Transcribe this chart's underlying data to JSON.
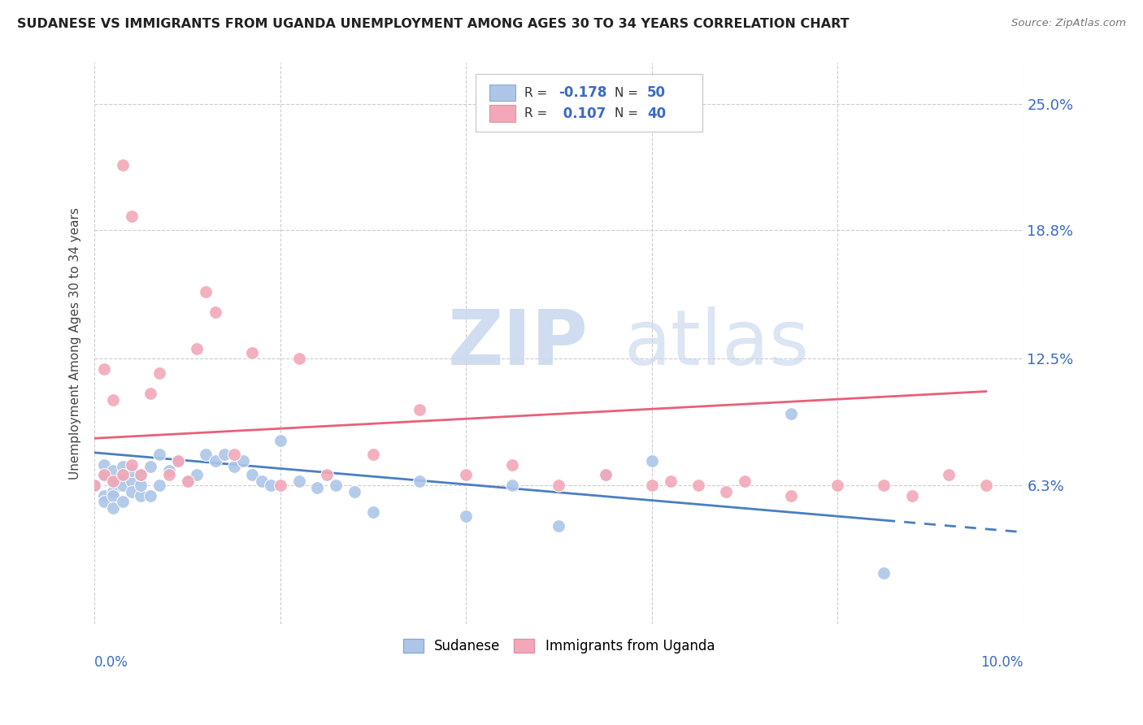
{
  "title": "SUDANESE VS IMMIGRANTS FROM UGANDA UNEMPLOYMENT AMONG AGES 30 TO 34 YEARS CORRELATION CHART",
  "source": "Source: ZipAtlas.com",
  "ylabel": "Unemployment Among Ages 30 to 34 years",
  "ytick_labels": [
    "6.3%",
    "12.5%",
    "18.8%",
    "25.0%"
  ],
  "ytick_values": [
    0.063,
    0.125,
    0.188,
    0.25
  ],
  "xlim": [
    0.0,
    0.1
  ],
  "ylim": [
    -0.005,
    0.27
  ],
  "watermark_zip": "ZIP",
  "watermark_atlas": "atlas",
  "color_blue": "#adc6e8",
  "color_pink": "#f2a8b8",
  "trend_blue": "#4a7fc1",
  "trend_pink": "#e8607a",
  "sudanese_x": [
    0.0,
    0.001,
    0.001,
    0.001,
    0.001,
    0.002,
    0.002,
    0.002,
    0.002,
    0.002,
    0.003,
    0.003,
    0.003,
    0.003,
    0.004,
    0.004,
    0.004,
    0.005,
    0.005,
    0.005,
    0.006,
    0.006,
    0.007,
    0.007,
    0.008,
    0.009,
    0.01,
    0.011,
    0.012,
    0.013,
    0.014,
    0.015,
    0.016,
    0.017,
    0.018,
    0.019,
    0.02,
    0.022,
    0.024,
    0.026,
    0.028,
    0.03,
    0.035,
    0.04,
    0.045,
    0.05,
    0.055,
    0.06,
    0.075,
    0.085
  ],
  "sudanese_y": [
    0.063,
    0.058,
    0.068,
    0.055,
    0.073,
    0.06,
    0.065,
    0.07,
    0.058,
    0.052,
    0.063,
    0.068,
    0.072,
    0.055,
    0.065,
    0.06,
    0.07,
    0.058,
    0.063,
    0.068,
    0.072,
    0.058,
    0.078,
    0.063,
    0.07,
    0.075,
    0.065,
    0.068,
    0.078,
    0.075,
    0.078,
    0.072,
    0.075,
    0.068,
    0.065,
    0.063,
    0.085,
    0.065,
    0.062,
    0.063,
    0.06,
    0.05,
    0.065,
    0.048,
    0.063,
    0.043,
    0.068,
    0.075,
    0.098,
    0.02
  ],
  "uganda_x": [
    0.0,
    0.001,
    0.001,
    0.002,
    0.002,
    0.003,
    0.003,
    0.004,
    0.004,
    0.005,
    0.006,
    0.007,
    0.008,
    0.009,
    0.01,
    0.011,
    0.012,
    0.013,
    0.015,
    0.017,
    0.02,
    0.022,
    0.025,
    0.03,
    0.035,
    0.04,
    0.045,
    0.05,
    0.055,
    0.06,
    0.062,
    0.065,
    0.068,
    0.07,
    0.075,
    0.08,
    0.085,
    0.088,
    0.092,
    0.096
  ],
  "uganda_y": [
    0.063,
    0.068,
    0.12,
    0.065,
    0.105,
    0.22,
    0.068,
    0.195,
    0.073,
    0.068,
    0.108,
    0.118,
    0.068,
    0.075,
    0.065,
    0.13,
    0.158,
    0.148,
    0.078,
    0.128,
    0.063,
    0.125,
    0.068,
    0.078,
    0.1,
    0.068,
    0.073,
    0.063,
    0.068,
    0.063,
    0.065,
    0.063,
    0.06,
    0.065,
    0.058,
    0.063,
    0.063,
    0.058,
    0.068,
    0.063
  ],
  "trend_blue_x0": 0.0,
  "trend_blue_x1": 0.1,
  "trend_blue_y0": 0.079,
  "trend_blue_y1": 0.04,
  "trend_blue_solid_end": 0.085,
  "trend_pink_x0": 0.0,
  "trend_pink_x1": 0.096,
  "trend_pink_y0": 0.086,
  "trend_pink_y1": 0.109
}
